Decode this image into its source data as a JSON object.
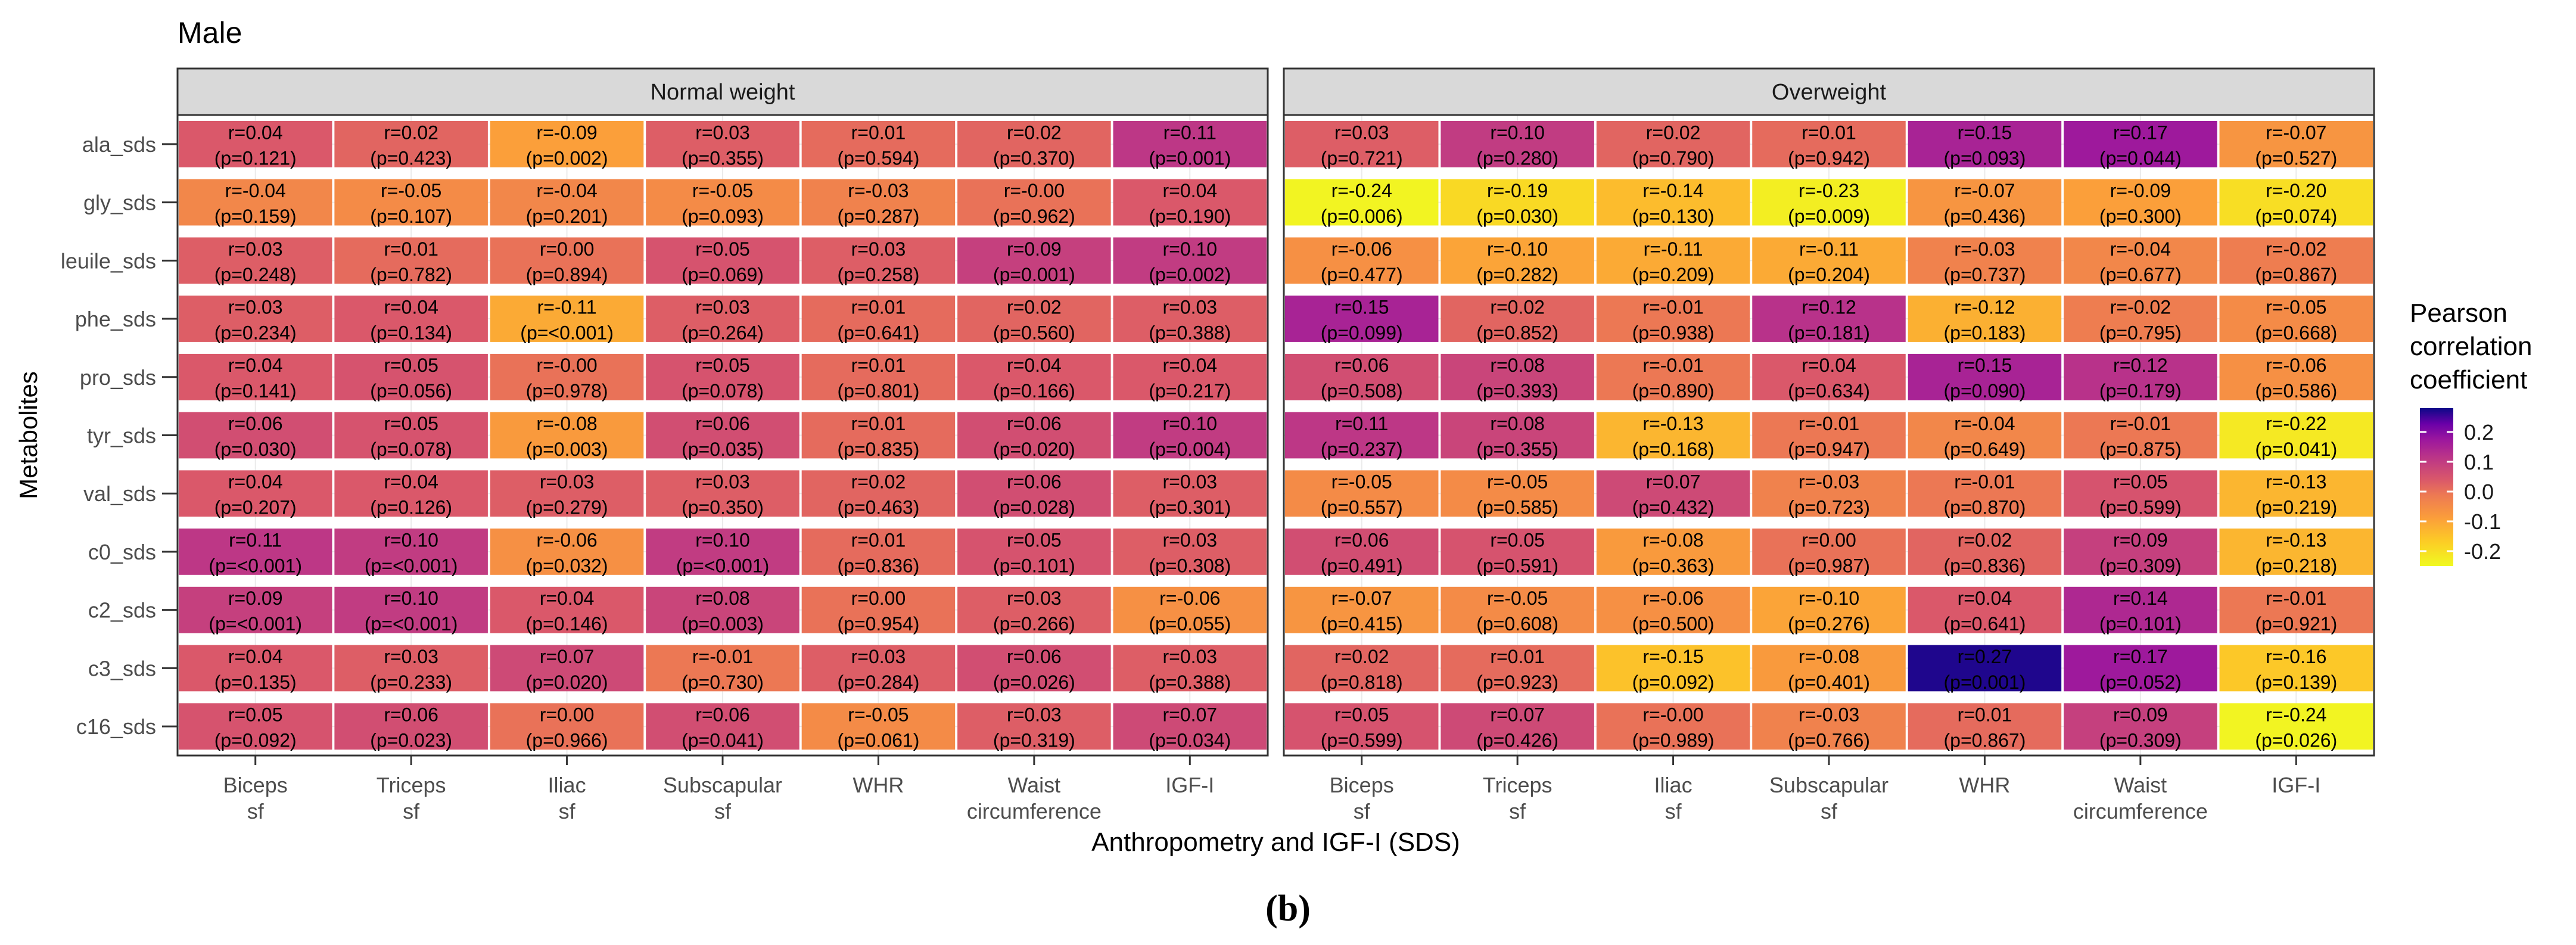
{
  "chart_data": {
    "type": "heatmap",
    "title": "Male",
    "xlabel": "Anthropometry and IGF-I (SDS)",
    "ylabel": "Metabolites",
    "caption": "(b)",
    "rows": [
      "ala_sds",
      "gly_sds",
      "leuile_sds",
      "phe_sds",
      "pro_sds",
      "tyr_sds",
      "val_sds",
      "c0_sds",
      "c2_sds",
      "c3_sds",
      "c16_sds"
    ],
    "columns": [
      [
        "Biceps",
        "sf"
      ],
      [
        "Triceps",
        "sf"
      ],
      [
        "Iliac",
        "sf"
      ],
      [
        "Subscapular",
        "sf"
      ],
      [
        "WHR"
      ],
      [
        "Waist",
        "circumference"
      ],
      [
        "IGF-I"
      ]
    ],
    "legend": {
      "title": [
        "Pearson",
        "correlation",
        "coefficient"
      ],
      "ticks": [
        "0.2",
        "0.1",
        "0.0",
        "-0.1",
        "-0.2"
      ],
      "tick_values": [
        0.2,
        0.1,
        0.0,
        -0.1,
        -0.2
      ],
      "range": [
        -0.25,
        0.28
      ],
      "colors": {
        "low": "#F0F921",
        "mid_low": "#FCA636",
        "mid": "#E16462",
        "mid_high": "#B12A90",
        "high": "#0D0887"
      }
    },
    "panels": [
      {
        "name": "Normal weight",
        "r": [
          [
            "0.04",
            "0.02",
            "-0.09",
            "0.03",
            "0.01",
            "0.02",
            "0.11"
          ],
          [
            "-0.04",
            "-0.05",
            "-0.04",
            "-0.05",
            "-0.03",
            "-0.00",
            "0.04"
          ],
          [
            "0.03",
            "0.01",
            "0.00",
            "0.05",
            "0.03",
            "0.09",
            "0.10"
          ],
          [
            "0.03",
            "0.04",
            "-0.11",
            "0.03",
            "0.01",
            "0.02",
            "0.03"
          ],
          [
            "0.04",
            "0.05",
            "-0.00",
            "0.05",
            "0.01",
            "0.04",
            "0.04"
          ],
          [
            "0.06",
            "0.05",
            "-0.08",
            "0.06",
            "0.01",
            "0.06",
            "0.10"
          ],
          [
            "0.04",
            "0.04",
            "0.03",
            "0.03",
            "0.02",
            "0.06",
            "0.03"
          ],
          [
            "0.11",
            "0.10",
            "-0.06",
            "0.10",
            "0.01",
            "0.05",
            "0.03"
          ],
          [
            "0.09",
            "0.10",
            "0.04",
            "0.08",
            "0.00",
            "0.03",
            "-0.06"
          ],
          [
            "0.04",
            "0.03",
            "0.07",
            "-0.01",
            "0.03",
            "0.06",
            "0.03"
          ],
          [
            "0.05",
            "0.06",
            "0.00",
            "0.06",
            "-0.05",
            "0.03",
            "0.07"
          ]
        ],
        "p": [
          [
            "0.121",
            "0.423",
            "0.002",
            "0.355",
            "0.594",
            "0.370",
            "0.001"
          ],
          [
            "0.159",
            "0.107",
            "0.201",
            "0.093",
            "0.287",
            "0.962",
            "0.190"
          ],
          [
            "0.248",
            "0.782",
            "0.894",
            "0.069",
            "0.258",
            "0.001",
            "0.002"
          ],
          [
            "0.234",
            "0.134",
            "<0.001",
            "0.264",
            "0.641",
            "0.560",
            "0.388"
          ],
          [
            "0.141",
            "0.056",
            "0.978",
            "0.078",
            "0.801",
            "0.166",
            "0.217"
          ],
          [
            "0.030",
            "0.078",
            "0.003",
            "0.035",
            "0.835",
            "0.020",
            "0.004"
          ],
          [
            "0.207",
            "0.126",
            "0.279",
            "0.350",
            "0.463",
            "0.028",
            "0.301"
          ],
          [
            "<0.001",
            "<0.001",
            "0.032",
            "<0.001",
            "0.836",
            "0.101",
            "0.308"
          ],
          [
            "<0.001",
            "<0.001",
            "0.146",
            "0.003",
            "0.954",
            "0.266",
            "0.055"
          ],
          [
            "0.135",
            "0.233",
            "0.020",
            "0.730",
            "0.284",
            "0.026",
            "0.388"
          ],
          [
            "0.092",
            "0.023",
            "0.966",
            "0.041",
            "0.061",
            "0.319",
            "0.034"
          ]
        ]
      },
      {
        "name": "Overweight",
        "r": [
          [
            "0.03",
            "0.10",
            "0.02",
            "0.01",
            "0.15",
            "0.17",
            "-0.07"
          ],
          [
            "-0.24",
            "-0.19",
            "-0.14",
            "-0.23",
            "-0.07",
            "-0.09",
            "-0.20"
          ],
          [
            "-0.06",
            "-0.10",
            "-0.11",
            "-0.11",
            "-0.03",
            "-0.04",
            "-0.02"
          ],
          [
            "0.15",
            "0.02",
            "-0.01",
            "0.12",
            "-0.12",
            "-0.02",
            "-0.05"
          ],
          [
            "0.06",
            "0.08",
            "-0.01",
            "0.04",
            "0.15",
            "0.12",
            "-0.06"
          ],
          [
            "0.11",
            "0.08",
            "-0.13",
            "-0.01",
            "-0.04",
            "-0.01",
            "-0.22"
          ],
          [
            "-0.05",
            "-0.05",
            "0.07",
            "-0.03",
            "-0.01",
            "0.05",
            "-0.13"
          ],
          [
            "0.06",
            "0.05",
            "-0.08",
            "0.00",
            "0.02",
            "0.09",
            "-0.13"
          ],
          [
            "-0.07",
            "-0.05",
            "-0.06",
            "-0.10",
            "0.04",
            "0.14",
            "-0.01"
          ],
          [
            "0.02",
            "0.01",
            "-0.15",
            "-0.08",
            "0.27",
            "0.17",
            "-0.16"
          ],
          [
            "0.05",
            "0.07",
            "-0.00",
            "-0.03",
            "0.01",
            "0.09",
            "-0.24"
          ]
        ],
        "p": [
          [
            "0.721",
            "0.280",
            "0.790",
            "0.942",
            "0.093",
            "0.044",
            "0.527"
          ],
          [
            "0.006",
            "0.030",
            "0.130",
            "0.009",
            "0.436",
            "0.300",
            "0.074"
          ],
          [
            "0.477",
            "0.282",
            "0.209",
            "0.204",
            "0.737",
            "0.677",
            "0.867"
          ],
          [
            "0.099",
            "0.852",
            "0.938",
            "0.181",
            "0.183",
            "0.795",
            "0.668"
          ],
          [
            "0.508",
            "0.393",
            "0.890",
            "0.634",
            "0.090",
            "0.179",
            "0.586"
          ],
          [
            "0.237",
            "0.355",
            "0.168",
            "0.947",
            "0.649",
            "0.875",
            "0.041"
          ],
          [
            "0.557",
            "0.585",
            "0.432",
            "0.723",
            "0.870",
            "0.599",
            "0.219"
          ],
          [
            "0.491",
            "0.591",
            "0.363",
            "0.987",
            "0.836",
            "0.309",
            "0.218"
          ],
          [
            "0.415",
            "0.608",
            "0.500",
            "0.276",
            "0.641",
            "0.101",
            "0.921"
          ],
          [
            "0.818",
            "0.923",
            "0.092",
            "0.401",
            "0.001",
            "0.052",
            "0.139"
          ],
          [
            "0.599",
            "0.426",
            "0.989",
            "0.766",
            "0.867",
            "0.309",
            "0.026"
          ]
        ]
      }
    ]
  }
}
